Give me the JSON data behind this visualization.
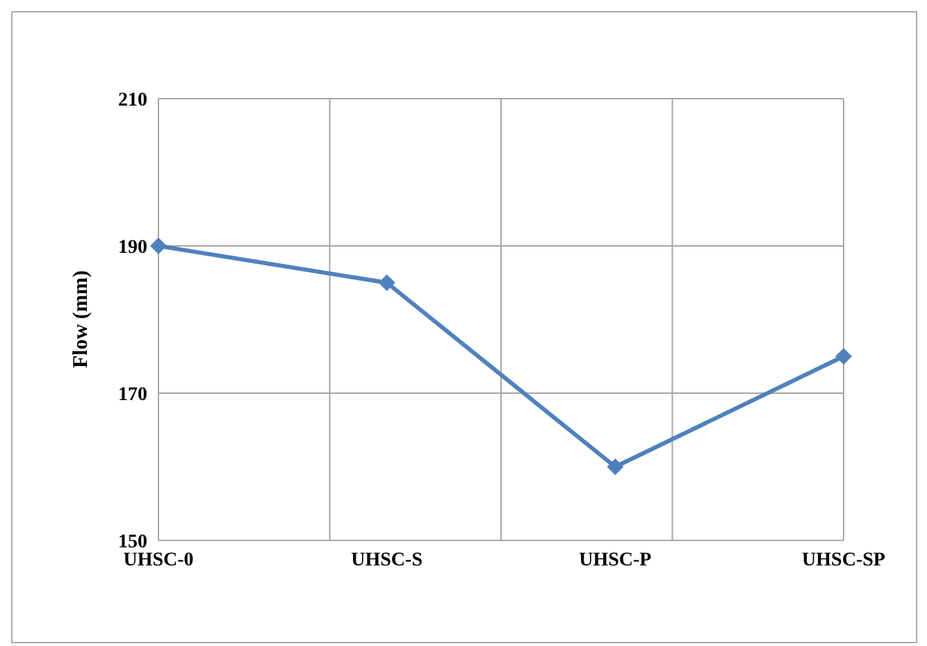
{
  "chart_data": {
    "type": "line",
    "ylabel": "Flow (mm)",
    "categories": [
      "UHSC-0",
      "UHSC-S",
      "UHSC-P",
      "UHSC-SP"
    ],
    "series": [
      {
        "color": "#4f81bd",
        "values": [
          190,
          185,
          160,
          175
        ]
      }
    ],
    "ylim": [
      150,
      210
    ],
    "yticks": [
      150,
      170,
      190,
      210
    ],
    "grid": true,
    "marker": "diamond",
    "line_style": "solid"
  }
}
